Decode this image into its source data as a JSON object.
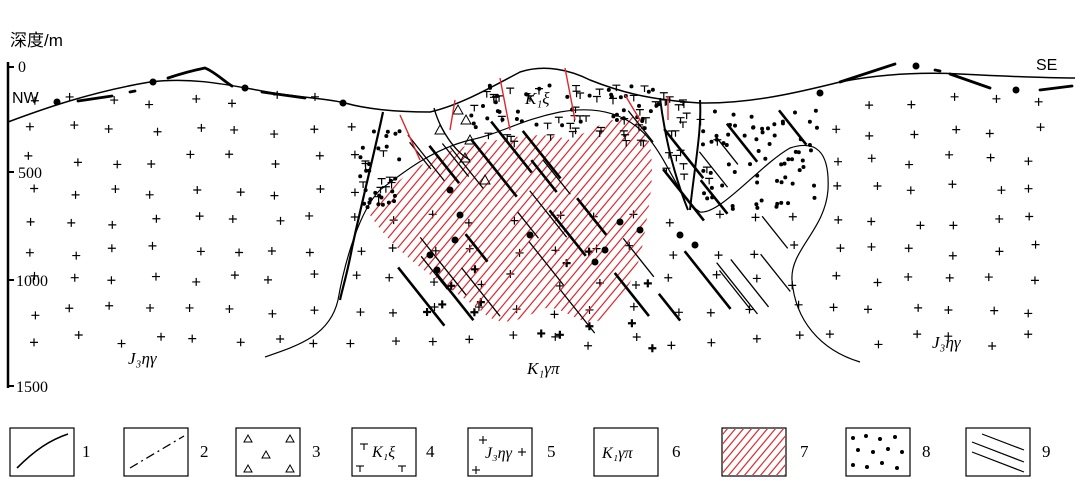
{
  "depth_axis": {
    "title": "深度/m",
    "ticks": [
      "0",
      "500",
      "1000",
      "1500"
    ]
  },
  "directions": {
    "left": "NW",
    "right": "SE"
  },
  "unit_labels": {
    "granite_left": "J₃ηγ",
    "granite_right": "J₃ηγ",
    "porphyry": "K₁γπ",
    "syenite": "K₁ξ"
  },
  "legend": [
    {
      "number": "1",
      "icon": "solid-line-icon"
    },
    {
      "number": "2",
      "icon": "dash-dot-line-icon"
    },
    {
      "number": "3",
      "icon": "triangle-breccia-icon"
    },
    {
      "number": "4",
      "icon": "syenite-pattern-icon",
      "text": "K₁ξ"
    },
    {
      "number": "5",
      "icon": "granite-cross-pattern-icon",
      "text": "J₃ηγ"
    },
    {
      "number": "6",
      "icon": "porphyry-label-icon",
      "text": "K₁γπ"
    },
    {
      "number": "7",
      "icon": "red-hatch-icon"
    },
    {
      "number": "8",
      "icon": "dot-pattern-icon"
    },
    {
      "number": "9",
      "icon": "vein-lines-icon"
    }
  ],
  "colors": {
    "hatch": "#e0262b",
    "ink": "#000000"
  }
}
